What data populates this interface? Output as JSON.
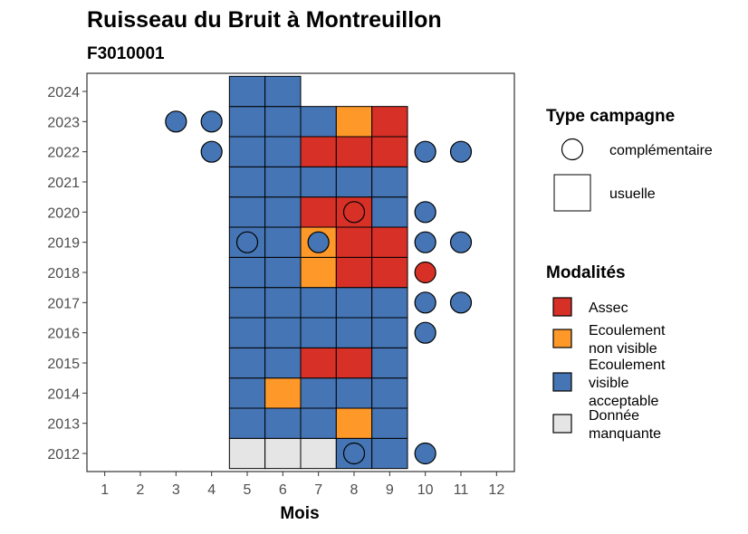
{
  "chart_data": {
    "type": "heatmap",
    "title": "Ruisseau du Bruit à Montreuillon",
    "subtitle": "F3010001",
    "xlabel": "Mois",
    "ylabel": "",
    "x_ticks": [
      "1",
      "2",
      "3",
      "4",
      "5",
      "6",
      "7",
      "8",
      "9",
      "10",
      "11",
      "12"
    ],
    "y_ticks": [
      "2012",
      "2013",
      "2014",
      "2015",
      "2016",
      "2017",
      "2018",
      "2019",
      "2020",
      "2021",
      "2022",
      "2023",
      "2024"
    ],
    "xlim": [
      0.5,
      12.5
    ],
    "ylim": [
      2011.4,
      2024.6
    ],
    "grid": false,
    "colors": {
      "Assec": "#d73027",
      "Ecoulement non visible": "#fe9929",
      "Ecoulement visible acceptable": "#4575b4",
      "Donnée manquante": "#e5e5e5"
    },
    "usuelle": [
      {
        "year": 2012,
        "month": 5,
        "m": "Donnée manquante"
      },
      {
        "year": 2012,
        "month": 6,
        "m": "Donnée manquante"
      },
      {
        "year": 2012,
        "month": 7,
        "m": "Donnée manquante"
      },
      {
        "year": 2012,
        "month": 8,
        "m": "Ecoulement visible acceptable"
      },
      {
        "year": 2012,
        "month": 9,
        "m": "Ecoulement visible acceptable"
      },
      {
        "year": 2013,
        "month": 5,
        "m": "Ecoulement visible acceptable"
      },
      {
        "year": 2013,
        "month": 6,
        "m": "Ecoulement visible acceptable"
      },
      {
        "year": 2013,
        "month": 7,
        "m": "Ecoulement visible acceptable"
      },
      {
        "year": 2013,
        "month": 8,
        "m": "Ecoulement non visible"
      },
      {
        "year": 2013,
        "month": 9,
        "m": "Ecoulement visible acceptable"
      },
      {
        "year": 2014,
        "month": 5,
        "m": "Ecoulement visible acceptable"
      },
      {
        "year": 2014,
        "month": 6,
        "m": "Ecoulement non visible"
      },
      {
        "year": 2014,
        "month": 7,
        "m": "Ecoulement visible acceptable"
      },
      {
        "year": 2014,
        "month": 8,
        "m": "Ecoulement visible acceptable"
      },
      {
        "year": 2014,
        "month": 9,
        "m": "Ecoulement visible acceptable"
      },
      {
        "year": 2015,
        "month": 5,
        "m": "Ecoulement visible acceptable"
      },
      {
        "year": 2015,
        "month": 6,
        "m": "Ecoulement visible acceptable"
      },
      {
        "year": 2015,
        "month": 7,
        "m": "Assec"
      },
      {
        "year": 2015,
        "month": 8,
        "m": "Assec"
      },
      {
        "year": 2015,
        "month": 9,
        "m": "Ecoulement visible acceptable"
      },
      {
        "year": 2016,
        "month": 5,
        "m": "Ecoulement visible acceptable"
      },
      {
        "year": 2016,
        "month": 6,
        "m": "Ecoulement visible acceptable"
      },
      {
        "year": 2016,
        "month": 7,
        "m": "Ecoulement visible acceptable"
      },
      {
        "year": 2016,
        "month": 8,
        "m": "Ecoulement visible acceptable"
      },
      {
        "year": 2016,
        "month": 9,
        "m": "Ecoulement visible acceptable"
      },
      {
        "year": 2017,
        "month": 5,
        "m": "Ecoulement visible acceptable"
      },
      {
        "year": 2017,
        "month": 6,
        "m": "Ecoulement visible acceptable"
      },
      {
        "year": 2017,
        "month": 7,
        "m": "Ecoulement visible acceptable"
      },
      {
        "year": 2017,
        "month": 8,
        "m": "Ecoulement visible acceptable"
      },
      {
        "year": 2017,
        "month": 9,
        "m": "Ecoulement visible acceptable"
      },
      {
        "year": 2018,
        "month": 5,
        "m": "Ecoulement visible acceptable"
      },
      {
        "year": 2018,
        "month": 6,
        "m": "Ecoulement visible acceptable"
      },
      {
        "year": 2018,
        "month": 7,
        "m": "Ecoulement non visible"
      },
      {
        "year": 2018,
        "month": 8,
        "m": "Assec"
      },
      {
        "year": 2018,
        "month": 9,
        "m": "Assec"
      },
      {
        "year": 2019,
        "month": 5,
        "m": "Ecoulement visible acceptable"
      },
      {
        "year": 2019,
        "month": 6,
        "m": "Ecoulement visible acceptable"
      },
      {
        "year": 2019,
        "month": 7,
        "m": "Ecoulement non visible"
      },
      {
        "year": 2019,
        "month": 8,
        "m": "Assec"
      },
      {
        "year": 2019,
        "month": 9,
        "m": "Assec"
      },
      {
        "year": 2020,
        "month": 5,
        "m": "Ecoulement visible acceptable"
      },
      {
        "year": 2020,
        "month": 6,
        "m": "Ecoulement visible acceptable"
      },
      {
        "year": 2020,
        "month": 7,
        "m": "Assec"
      },
      {
        "year": 2020,
        "month": 8,
        "m": "Assec"
      },
      {
        "year": 2020,
        "month": 9,
        "m": "Ecoulement visible acceptable"
      },
      {
        "year": 2021,
        "month": 5,
        "m": "Ecoulement visible acceptable"
      },
      {
        "year": 2021,
        "month": 6,
        "m": "Ecoulement visible acceptable"
      },
      {
        "year": 2021,
        "month": 7,
        "m": "Ecoulement visible acceptable"
      },
      {
        "year": 2021,
        "month": 8,
        "m": "Ecoulement visible acceptable"
      },
      {
        "year": 2021,
        "month": 9,
        "m": "Ecoulement visible acceptable"
      },
      {
        "year": 2022,
        "month": 5,
        "m": "Ecoulement visible acceptable"
      },
      {
        "year": 2022,
        "month": 6,
        "m": "Ecoulement visible acceptable"
      },
      {
        "year": 2022,
        "month": 7,
        "m": "Assec"
      },
      {
        "year": 2022,
        "month": 8,
        "m": "Assec"
      },
      {
        "year": 2022,
        "month": 9,
        "m": "Assec"
      },
      {
        "year": 2023,
        "month": 5,
        "m": "Ecoulement visible acceptable"
      },
      {
        "year": 2023,
        "month": 6,
        "m": "Ecoulement visible acceptable"
      },
      {
        "year": 2023,
        "month": 7,
        "m": "Ecoulement visible acceptable"
      },
      {
        "year": 2023,
        "month": 8,
        "m": "Ecoulement non visible"
      },
      {
        "year": 2023,
        "month": 9,
        "m": "Assec"
      },
      {
        "year": 2024,
        "month": 5,
        "m": "Ecoulement visible acceptable"
      },
      {
        "year": 2024,
        "month": 6,
        "m": "Ecoulement visible acceptable"
      }
    ],
    "complementaire": [
      {
        "year": 2012,
        "month": 8,
        "m": "Ecoulement visible acceptable"
      },
      {
        "year": 2012,
        "month": 10,
        "m": "Ecoulement visible acceptable"
      },
      {
        "year": 2016,
        "month": 10,
        "m": "Ecoulement visible acceptable"
      },
      {
        "year": 2017,
        "month": 10,
        "m": "Ecoulement visible acceptable"
      },
      {
        "year": 2017,
        "month": 11,
        "m": "Ecoulement visible acceptable"
      },
      {
        "year": 2018,
        "month": 10,
        "m": "Assec"
      },
      {
        "year": 2019,
        "month": 5,
        "m": "Ecoulement visible acceptable"
      },
      {
        "year": 2019,
        "month": 7,
        "m": "Ecoulement visible acceptable"
      },
      {
        "year": 2019,
        "month": 10,
        "m": "Ecoulement visible acceptable"
      },
      {
        "year": 2019,
        "month": 11,
        "m": "Ecoulement visible acceptable"
      },
      {
        "year": 2020,
        "month": 8,
        "m": "Assec"
      },
      {
        "year": 2020,
        "month": 10,
        "m": "Ecoulement visible acceptable"
      },
      {
        "year": 2022,
        "month": 4,
        "m": "Ecoulement visible acceptable"
      },
      {
        "year": 2022,
        "month": 10,
        "m": "Ecoulement visible acceptable"
      },
      {
        "year": 2022,
        "month": 11,
        "m": "Ecoulement visible acceptable"
      },
      {
        "year": 2023,
        "month": 3,
        "m": "Ecoulement visible acceptable"
      },
      {
        "year": 2023,
        "month": 4,
        "m": "Ecoulement visible acceptable"
      }
    ],
    "legend": {
      "placement": "right",
      "type_title": "Type campagne",
      "type_items": [
        "complémentaire",
        "usuelle"
      ],
      "mod_title": "Modalités",
      "mod_items": [
        {
          "key": "Assec",
          "lines": [
            "Assec"
          ]
        },
        {
          "key": "Ecoulement non visible",
          "lines": [
            "Ecoulement",
            "non visible"
          ]
        },
        {
          "key": "Ecoulement visible acceptable",
          "lines": [
            "Ecoulement",
            "visible",
            "acceptable"
          ]
        },
        {
          "key": "Donnée manquante",
          "lines": [
            "Donnée",
            "manquante"
          ]
        }
      ]
    }
  }
}
